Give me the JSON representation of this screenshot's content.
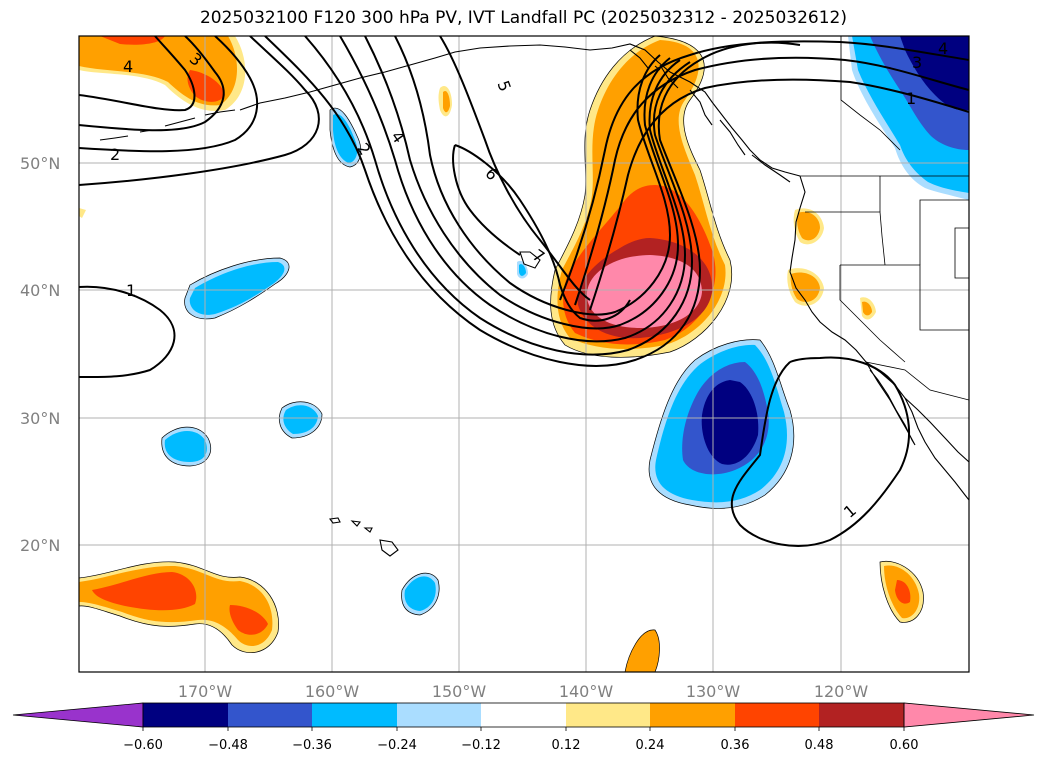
{
  "title": "2025032100 F120 300 hPa PV, IVT Landfall PC (2025032312 - 2025032612)",
  "map": {
    "lon_labels": [
      "170°W",
      "160°W",
      "150°W",
      "140°W",
      "130°W",
      "120°W"
    ],
    "lat_labels": [
      "50°N",
      "40°N",
      "30°N",
      "20°N"
    ],
    "contour_labels": [
      "4",
      "3",
      "2",
      "2",
      "4",
      "5",
      "6",
      "7",
      "1",
      "1",
      "4",
      "3",
      "1"
    ]
  },
  "colorbar": {
    "ticks": [
      "−0.60",
      "−0.48",
      "−0.36",
      "−0.24",
      "−0.12",
      "0.12",
      "0.24",
      "0.36",
      "0.48",
      "0.60"
    ],
    "colors": [
      "#9933cc",
      "#000080",
      "#3355cc",
      "#00bbff",
      "#aaddff",
      "#ffffff",
      "#ffe888",
      "#ffa000",
      "#ff4400",
      "#b22222",
      "#ff88aa",
      "#ff88aa"
    ]
  }
}
